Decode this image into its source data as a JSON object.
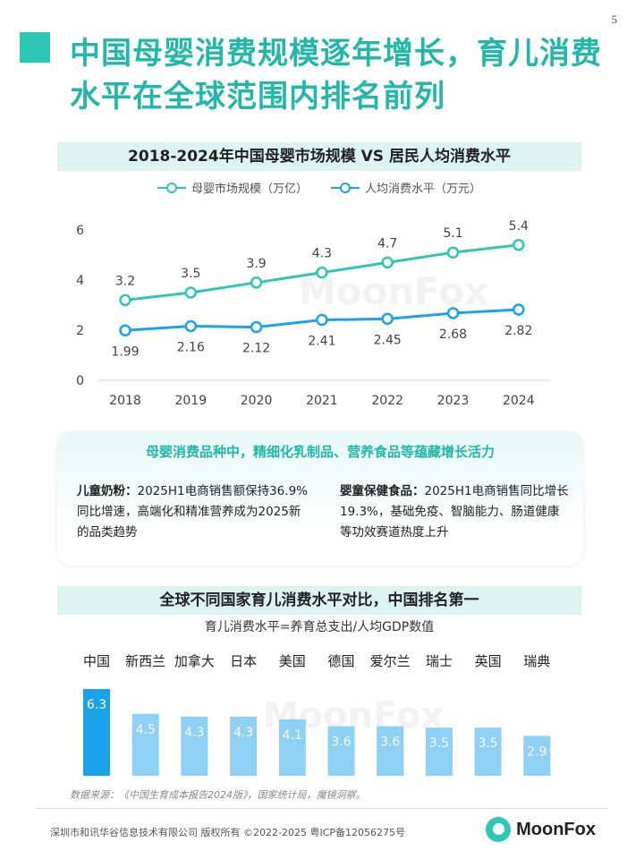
{
  "page": {
    "number": "5",
    "title": "中国母婴消费规模逐年增长，育儿消费水平在全球范围内排名前列"
  },
  "watermark": "MoonFox",
  "line_section": {
    "header": "2018-2024年中国母婴市场规模 VS 居民人均消费水平"
  },
  "callout": {
    "headline": "母婴消费品种中，精细化乳制品、营养食品等蕴藏增长活力",
    "left_title": "儿童奶粉：",
    "left_body": "2025H1电商销售额保持36.9%同比增速，高端化和精准营养成为2025新的品类趋势",
    "right_title": "婴童保健食品：",
    "right_body": "2025H1电商销售同比增长19.3%，基础免疫、智脑能力、肠道健康等功效赛道热度上升"
  },
  "bar_section": {
    "header": "全球不同国家育儿消费水平对比，中国排名第一",
    "formula": "育儿消费水平=养育总支出/人均GDP数值"
  },
  "source": "数据来源：《中国生育成本报告2024版》，国家统计局，魔镜洞察。",
  "footer": {
    "copyright": "深圳市和讯华谷信息技术有限公司 版权所有 ©2022-2025    粤ICP备12056275号",
    "logo_text": "MoonFox"
  },
  "colors": {
    "accent": "#2ec6b5",
    "line_series_1": "#2ec6b5",
    "line_series_2": "#1aa3e8",
    "bar_highlight": "#1aa3e8",
    "bar_default": "#8fd0f5"
  },
  "chart_data": [
    {
      "type": "line",
      "title": "2018-2024年中国母婴市场规模 VS 居民人均消费水平",
      "x": [
        "2018",
        "2019",
        "2020",
        "2021",
        "2022",
        "2023",
        "2024"
      ],
      "yticks": [
        "0",
        "2",
        "4",
        "6"
      ],
      "ylim": [
        0,
        6
      ],
      "grid": false,
      "legend_position": "top-center",
      "series": [
        {
          "name": "母婴市场规模（万亿）",
          "values": [
            3.2,
            3.5,
            3.9,
            4.3,
            4.7,
            5.1,
            5.4
          ],
          "labels": [
            "3.2",
            "3.5",
            "3.9",
            "4.3",
            "4.7",
            "5.1",
            "5.4"
          ]
        },
        {
          "name": "人均消费水平（万元）",
          "values": [
            1.99,
            2.16,
            2.12,
            2.41,
            2.45,
            2.68,
            2.82
          ],
          "labels": [
            "1.99",
            "2.16",
            "2.12",
            "2.41",
            "2.45",
            "2.68",
            "2.82"
          ]
        }
      ]
    },
    {
      "type": "bar",
      "title": "全球不同国家育儿消费水平对比，中国排名第一",
      "categories": [
        "中国",
        "新西兰",
        "加拿大",
        "日本",
        "美国",
        "德国",
        "爱尔兰",
        "瑞士",
        "英国",
        "瑞典"
      ],
      "values": [
        6.3,
        4.5,
        4.3,
        4.3,
        4.1,
        3.6,
        3.6,
        3.5,
        3.5,
        2.9
      ],
      "labels": [
        "6.3",
        "4.5",
        "4.3",
        "4.3",
        "4.1",
        "3.6",
        "3.6",
        "3.5",
        "3.5",
        "2.9"
      ],
      "ylim": [
        0,
        6.5
      ],
      "highlight_index": 0
    }
  ]
}
